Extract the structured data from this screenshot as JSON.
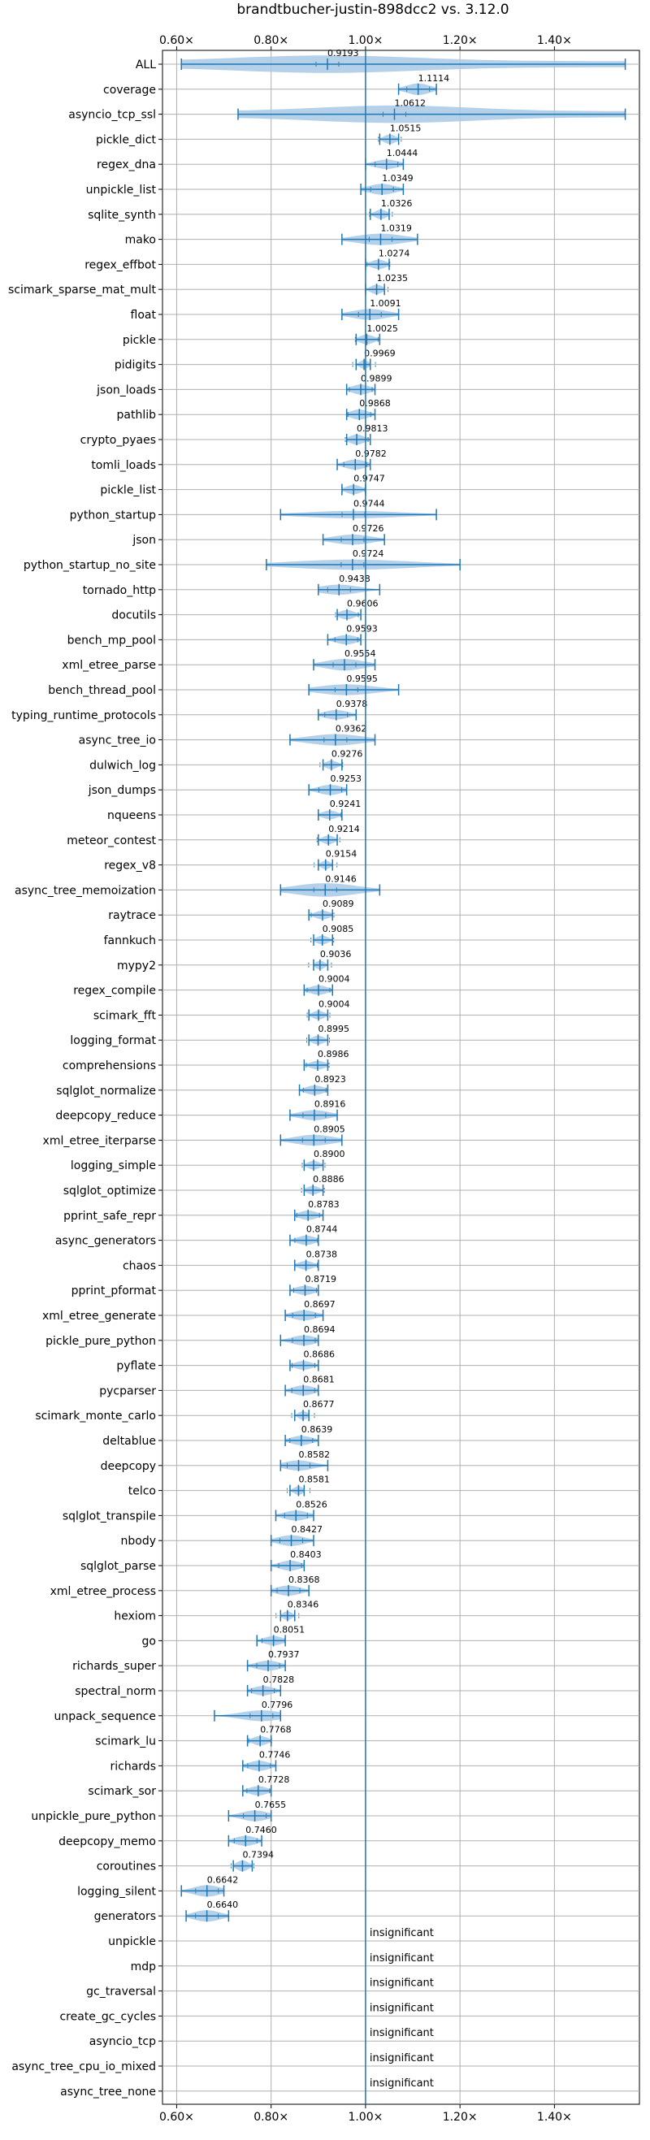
{
  "chart_data": {
    "type": "violin",
    "title": "brandtbucher-justin-898dcc2 vs. 3.12.0",
    "xlim": [
      0.57,
      1.58
    ],
    "xticks": [
      0.6,
      0.8,
      1.0,
      1.2,
      1.4
    ],
    "xtick_labels": [
      "0.60×",
      "0.80×",
      "1.00×",
      "1.20×",
      "1.40×"
    ],
    "reference_line": 1.0,
    "grid": true,
    "accent_color": "#1f77b4",
    "violin_fill": "#a8c9e6",
    "benchmarks": [
      {
        "name": "ALL",
        "label": "0.9193",
        "mean": 0.9193,
        "min": 0.61,
        "max": 1.55,
        "width": 0.45,
        "wide": true
      },
      {
        "name": "coverage",
        "label": "1.1114",
        "mean": 1.1114,
        "min": 1.07,
        "max": 1.15,
        "width": 0.34
      },
      {
        "name": "asyncio_tcp_ssl",
        "label": "1.0612",
        "mean": 1.0612,
        "min": 0.73,
        "max": 1.55,
        "width": 0.45,
        "wide": true
      },
      {
        "name": "pickle_dict",
        "label": "1.0515",
        "mean": 1.0515,
        "min": 1.03,
        "max": 1.07,
        "width": 0.28
      },
      {
        "name": "regex_dna",
        "label": "1.0444",
        "mean": 1.0444,
        "min": 1.0,
        "max": 1.08,
        "width": 0.28
      },
      {
        "name": "unpickle_list",
        "label": "1.0349",
        "mean": 1.0349,
        "min": 0.99,
        "max": 1.08,
        "width": 0.32
      },
      {
        "name": "sqlite_synth",
        "label": "1.0326",
        "mean": 1.0326,
        "min": 1.01,
        "max": 1.05,
        "width": 0.28
      },
      {
        "name": "mako",
        "label": "1.0319",
        "mean": 1.0319,
        "min": 0.95,
        "max": 1.11,
        "width": 0.34
      },
      {
        "name": "regex_effbot",
        "label": "1.0274",
        "mean": 1.0274,
        "min": 1.0,
        "max": 1.05,
        "width": 0.28
      },
      {
        "name": "scimark_sparse_mat_mult",
        "label": "1.0235",
        "mean": 1.0235,
        "min": 1.0,
        "max": 1.04,
        "width": 0.28
      },
      {
        "name": "float",
        "label": "1.0091",
        "mean": 1.0091,
        "min": 0.95,
        "max": 1.07,
        "width": 0.32
      },
      {
        "name": "pickle",
        "label": "1.0025",
        "mean": 1.0025,
        "min": 0.98,
        "max": 1.03,
        "width": 0.28
      },
      {
        "name": "pidigits",
        "label": "0.9969",
        "mean": 0.9969,
        "min": 0.98,
        "max": 1.01,
        "width": 0.26
      },
      {
        "name": "json_loads",
        "label": "0.9899",
        "mean": 0.9899,
        "min": 0.96,
        "max": 1.02,
        "width": 0.3
      },
      {
        "name": "pathlib",
        "label": "0.9868",
        "mean": 0.9868,
        "min": 0.96,
        "max": 1.02,
        "width": 0.3
      },
      {
        "name": "crypto_pyaes",
        "label": "0.9813",
        "mean": 0.9813,
        "min": 0.96,
        "max": 1.01,
        "width": 0.3
      },
      {
        "name": "tomli_loads",
        "label": "0.9782",
        "mean": 0.9782,
        "min": 0.94,
        "max": 1.01,
        "width": 0.3
      },
      {
        "name": "pickle_list",
        "label": "0.9747",
        "mean": 0.9747,
        "min": 0.95,
        "max": 1.0,
        "width": 0.28
      },
      {
        "name": "python_startup",
        "label": "0.9744",
        "mean": 0.9744,
        "min": 0.82,
        "max": 1.15,
        "width": 0.22
      },
      {
        "name": "json",
        "label": "0.9726",
        "mean": 0.9726,
        "min": 0.91,
        "max": 1.04,
        "width": 0.3
      },
      {
        "name": "python_startup_no_site",
        "label": "0.9724",
        "mean": 0.9724,
        "min": 0.79,
        "max": 1.2,
        "width": 0.3
      },
      {
        "name": "tornado_http",
        "label": "0.9438",
        "mean": 0.9438,
        "min": 0.9,
        "max": 1.03,
        "width": 0.3
      },
      {
        "name": "docutils",
        "label": "0.9606",
        "mean": 0.9606,
        "min": 0.94,
        "max": 0.99,
        "width": 0.28
      },
      {
        "name": "bench_mp_pool",
        "label": "0.9593",
        "mean": 0.9593,
        "min": 0.92,
        "max": 0.99,
        "width": 0.28
      },
      {
        "name": "xml_etree_parse",
        "label": "0.9554",
        "mean": 0.9554,
        "min": 0.89,
        "max": 1.02,
        "width": 0.34
      },
      {
        "name": "bench_thread_pool",
        "label": "0.9595",
        "mean": 0.9595,
        "min": 0.88,
        "max": 1.07,
        "width": 0.32
      },
      {
        "name": "typing_runtime_protocols",
        "label": "0.9378",
        "mean": 0.9378,
        "min": 0.9,
        "max": 0.98,
        "width": 0.28
      },
      {
        "name": "async_tree_io",
        "label": "0.9362",
        "mean": 0.9362,
        "min": 0.84,
        "max": 1.02,
        "width": 0.34
      },
      {
        "name": "dulwich_log",
        "label": "0.9276",
        "mean": 0.9276,
        "min": 0.91,
        "max": 0.95,
        "width": 0.26
      },
      {
        "name": "json_dumps",
        "label": "0.9253",
        "mean": 0.9253,
        "min": 0.88,
        "max": 0.96,
        "width": 0.3
      },
      {
        "name": "nqueens",
        "label": "0.9241",
        "mean": 0.9241,
        "min": 0.9,
        "max": 0.95,
        "width": 0.26
      },
      {
        "name": "meteor_contest",
        "label": "0.9214",
        "mean": 0.9214,
        "min": 0.9,
        "max": 0.94,
        "width": 0.26
      },
      {
        "name": "regex_v8",
        "label": "0.9154",
        "mean": 0.9154,
        "min": 0.9,
        "max": 0.93,
        "width": 0.26
      },
      {
        "name": "async_tree_memoization",
        "label": "0.9146",
        "mean": 0.9146,
        "min": 0.82,
        "max": 1.03,
        "width": 0.4
      },
      {
        "name": "raytrace",
        "label": "0.9089",
        "mean": 0.9089,
        "min": 0.88,
        "max": 0.93,
        "width": 0.26
      },
      {
        "name": "fannkuch",
        "label": "0.9085",
        "mean": 0.9085,
        "min": 0.89,
        "max": 0.93,
        "width": 0.26
      },
      {
        "name": "mypy2",
        "label": "0.9036",
        "mean": 0.9036,
        "min": 0.89,
        "max": 0.92,
        "width": 0.26
      },
      {
        "name": "regex_compile",
        "label": "0.9004",
        "mean": 0.9004,
        "min": 0.87,
        "max": 0.93,
        "width": 0.28
      },
      {
        "name": "scimark_fft",
        "label": "0.9004",
        "mean": 0.9004,
        "min": 0.88,
        "max": 0.92,
        "width": 0.26
      },
      {
        "name": "logging_format",
        "label": "0.8995",
        "mean": 0.8995,
        "min": 0.88,
        "max": 0.92,
        "width": 0.26
      },
      {
        "name": "comprehensions",
        "label": "0.8986",
        "mean": 0.8986,
        "min": 0.87,
        "max": 0.92,
        "width": 0.26
      },
      {
        "name": "sqlglot_normalize",
        "label": "0.8923",
        "mean": 0.8923,
        "min": 0.86,
        "max": 0.92,
        "width": 0.28
      },
      {
        "name": "deepcopy_reduce",
        "label": "0.8916",
        "mean": 0.8916,
        "min": 0.84,
        "max": 0.94,
        "width": 0.3
      },
      {
        "name": "xml_etree_iterparse",
        "label": "0.8905",
        "mean": 0.8905,
        "min": 0.82,
        "max": 0.95,
        "width": 0.32
      },
      {
        "name": "logging_simple",
        "label": "0.8900",
        "mean": 0.89,
        "min": 0.87,
        "max": 0.91,
        "width": 0.26
      },
      {
        "name": "sqlglot_optimize",
        "label": "0.8886",
        "mean": 0.8886,
        "min": 0.87,
        "max": 0.91,
        "width": 0.26
      },
      {
        "name": "pprint_safe_repr",
        "label": "0.8783",
        "mean": 0.8783,
        "min": 0.85,
        "max": 0.91,
        "width": 0.28
      },
      {
        "name": "async_generators",
        "label": "0.8744",
        "mean": 0.8744,
        "min": 0.84,
        "max": 0.9,
        "width": 0.28
      },
      {
        "name": "chaos",
        "label": "0.8738",
        "mean": 0.8738,
        "min": 0.85,
        "max": 0.9,
        "width": 0.26
      },
      {
        "name": "pprint_pformat",
        "label": "0.8719",
        "mean": 0.8719,
        "min": 0.84,
        "max": 0.9,
        "width": 0.28
      },
      {
        "name": "xml_etree_generate",
        "label": "0.8697",
        "mean": 0.8697,
        "min": 0.83,
        "max": 0.91,
        "width": 0.3
      },
      {
        "name": "pickle_pure_python",
        "label": "0.8694",
        "mean": 0.8694,
        "min": 0.82,
        "max": 0.9,
        "width": 0.3
      },
      {
        "name": "pyflate",
        "label": "0.8686",
        "mean": 0.8686,
        "min": 0.84,
        "max": 0.9,
        "width": 0.26
      },
      {
        "name": "pycparser",
        "label": "0.8681",
        "mean": 0.8681,
        "min": 0.83,
        "max": 0.9,
        "width": 0.3
      },
      {
        "name": "scimark_monte_carlo",
        "label": "0.8677",
        "mean": 0.8677,
        "min": 0.85,
        "max": 0.88,
        "width": 0.26
      },
      {
        "name": "deltablue",
        "label": "0.8639",
        "mean": 0.8639,
        "min": 0.83,
        "max": 0.9,
        "width": 0.28
      },
      {
        "name": "deepcopy",
        "label": "0.8582",
        "mean": 0.8582,
        "min": 0.82,
        "max": 0.92,
        "width": 0.3
      },
      {
        "name": "telco",
        "label": "0.8581",
        "mean": 0.8581,
        "min": 0.84,
        "max": 0.87,
        "width": 0.26
      },
      {
        "name": "sqlglot_transpile",
        "label": "0.8526",
        "mean": 0.8526,
        "min": 0.81,
        "max": 0.89,
        "width": 0.3
      },
      {
        "name": "nbody",
        "label": "0.8427",
        "mean": 0.8427,
        "min": 0.8,
        "max": 0.89,
        "width": 0.32
      },
      {
        "name": "sqlglot_parse",
        "label": "0.8403",
        "mean": 0.8403,
        "min": 0.8,
        "max": 0.87,
        "width": 0.3
      },
      {
        "name": "xml_etree_process",
        "label": "0.8368",
        "mean": 0.8368,
        "min": 0.8,
        "max": 0.88,
        "width": 0.3
      },
      {
        "name": "hexiom",
        "label": "0.8346",
        "mean": 0.8346,
        "min": 0.82,
        "max": 0.85,
        "width": 0.26
      },
      {
        "name": "go",
        "label": "0.8051",
        "mean": 0.8051,
        "min": 0.77,
        "max": 0.83,
        "width": 0.28
      },
      {
        "name": "richards_super",
        "label": "0.7937",
        "mean": 0.7937,
        "min": 0.75,
        "max": 0.83,
        "width": 0.3
      },
      {
        "name": "spectral_norm",
        "label": "0.7828",
        "mean": 0.7828,
        "min": 0.75,
        "max": 0.82,
        "width": 0.28
      },
      {
        "name": "unpack_sequence",
        "label": "0.7796",
        "mean": 0.7796,
        "min": 0.68,
        "max": 0.82,
        "width": 0.32
      },
      {
        "name": "scimark_lu",
        "label": "0.7768",
        "mean": 0.7768,
        "min": 0.75,
        "max": 0.8,
        "width": 0.28
      },
      {
        "name": "richards",
        "label": "0.7746",
        "mean": 0.7746,
        "min": 0.74,
        "max": 0.81,
        "width": 0.3
      },
      {
        "name": "scimark_sor",
        "label": "0.7728",
        "mean": 0.7728,
        "min": 0.74,
        "max": 0.8,
        "width": 0.28
      },
      {
        "name": "unpickle_pure_python",
        "label": "0.7655",
        "mean": 0.7655,
        "min": 0.71,
        "max": 0.8,
        "width": 0.32
      },
      {
        "name": "deepcopy_memo",
        "label": "0.7460",
        "mean": 0.746,
        "min": 0.71,
        "max": 0.78,
        "width": 0.3
      },
      {
        "name": "coroutines",
        "label": "0.7394",
        "mean": 0.7394,
        "min": 0.72,
        "max": 0.76,
        "width": 0.32
      },
      {
        "name": "logging_silent",
        "label": "0.6642",
        "mean": 0.6642,
        "min": 0.61,
        "max": 0.7,
        "width": 0.34
      },
      {
        "name": "generators",
        "label": "0.6640",
        "mean": 0.664,
        "min": 0.62,
        "max": 0.71,
        "width": 0.34
      },
      {
        "name": "unpickle",
        "label": "insignificant",
        "insignificant": true
      },
      {
        "name": "mdp",
        "label": "insignificant",
        "insignificant": true
      },
      {
        "name": "gc_traversal",
        "label": "insignificant",
        "insignificant": true
      },
      {
        "name": "create_gc_cycles",
        "label": "insignificant",
        "insignificant": true
      },
      {
        "name": "asyncio_tcp",
        "label": "insignificant",
        "insignificant": true
      },
      {
        "name": "async_tree_cpu_io_mixed",
        "label": "insignificant",
        "insignificant": true
      },
      {
        "name": "async_tree_none",
        "label": "insignificant",
        "insignificant": true
      }
    ]
  }
}
